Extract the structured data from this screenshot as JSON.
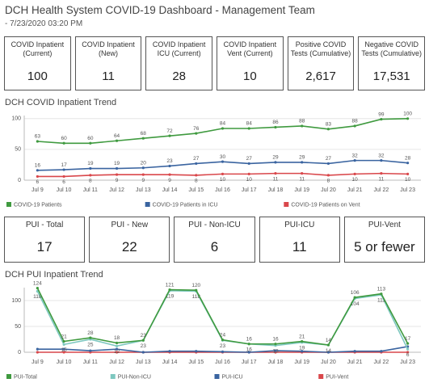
{
  "header": {
    "title": "DCH Health System COVID-19 Dashboard - Management Team",
    "subtitle": "- 7/23/2020 03:20 PM"
  },
  "kpis": [
    {
      "label": "COVID Inpatient (Current)",
      "value": 100
    },
    {
      "label": "COVID Inpatient (New)",
      "value": 11
    },
    {
      "label": "COVID Inpatient ICU (Current)",
      "value": 28
    },
    {
      "label": "COVID Inpatient Vent (Current)",
      "value": 10
    },
    {
      "label": "Positive COVID Tests (Cumulative)",
      "value": "2,617"
    },
    {
      "label": "Negative COVID Tests (Cumulative)",
      "value": "17,531"
    }
  ],
  "pui_kpis": [
    {
      "label": "PUI - Total",
      "value": 17
    },
    {
      "label": "PUI - New",
      "value": 22
    },
    {
      "label": "PUI - Non-ICU",
      "value": 6
    },
    {
      "label": "PUI-ICU",
      "value": 11
    },
    {
      "label": "PUI-Vent",
      "value": "5 or fewer"
    }
  ],
  "chart_data": [
    {
      "type": "line",
      "title": "DCH COVID Inpatient Trend",
      "categories": [
        "Jul 9",
        "Jul 10",
        "Jul 11",
        "Jul 12",
        "Jul 13",
        "Jul 14",
        "Jul 15",
        "Jul 16",
        "Jul 17",
        "Jul 18",
        "Jul 19",
        "Jul 20",
        "Jul 21",
        "Jul 22",
        "Jul 23"
      ],
      "series": [
        {
          "name": "COVID-19 Patients",
          "color": "#3f9a3f",
          "data_labels": "above",
          "values": [
            63,
            60,
            60,
            64,
            68,
            72,
            76,
            84,
            84,
            86,
            88,
            83,
            88,
            99,
            100
          ]
        },
        {
          "name": "COVID-19 Patients in ICU",
          "color": "#3a64a0",
          "data_labels": "above",
          "values": [
            16,
            17,
            19,
            19,
            20,
            23,
            27,
            30,
            27,
            29,
            29,
            27,
            32,
            32,
            28
          ]
        },
        {
          "name": "COVID-19 Patients on Vent",
          "color": "#d9474b",
          "data_labels": "below",
          "values": [
            6,
            6,
            8,
            9,
            9,
            9,
            8,
            10,
            10,
            11,
            11,
            8,
            10,
            11,
            10
          ]
        }
      ],
      "ylim": [
        0,
        105
      ],
      "yticks": [
        0,
        50,
        100
      ],
      "grid": true
    },
    {
      "type": "line",
      "title": "DCH PUI Inpatient Trend",
      "categories": [
        "Jul 9",
        "Jul 10",
        "Jul 11",
        "Jul 12",
        "Jul 13",
        "Jul 14",
        "Jul 15",
        "Jul 16",
        "Jul 17",
        "Jul 18",
        "Jul 19",
        "Jul 20",
        "Jul 21",
        "Jul 22",
        "Jul 23"
      ],
      "series": [
        {
          "name": "PUI-Total",
          "color": "#3f9a3f",
          "data_labels": "above",
          "values": [
            124,
            21,
            28,
            18,
            23,
            121,
            120,
            24,
            16,
            16,
            21,
            14,
            106,
            113,
            17
          ]
        },
        {
          "name": "PUI-Non-ICU",
          "color": "#7ec8c0",
          "data_labels": "below",
          "values": [
            118,
            15,
            25,
            12,
            23,
            119,
            118,
            23,
            16,
            13,
            19,
            14,
            104,
            111,
            6
          ]
        },
        {
          "name": "PUI-ICU",
          "color": "#3a64a0",
          "values": [
            6,
            6,
            3,
            6,
            0,
            2,
            2,
            1,
            0,
            3,
            2,
            0,
            2,
            2,
            11
          ]
        },
        {
          "name": "PUI-Vent",
          "color": "#d9474b",
          "values": [
            0,
            0,
            0,
            0,
            0,
            0,
            0,
            0,
            0,
            0,
            0,
            0,
            0,
            0,
            0
          ]
        }
      ],
      "ylim": [
        0,
        125
      ],
      "yticks": [
        0,
        50,
        100
      ],
      "grid": true
    }
  ]
}
